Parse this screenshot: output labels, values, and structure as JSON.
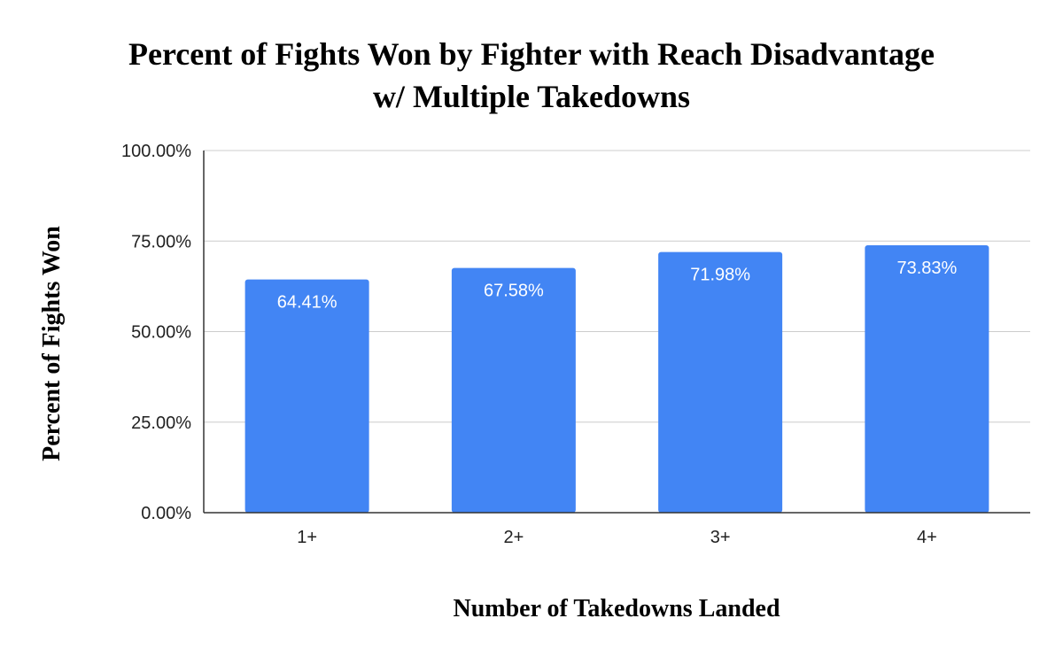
{
  "chart_data": {
    "type": "bar",
    "title_lines": [
      "Percent of Fights Won by Fighter with Reach Disadvantage",
      "w/ Multiple Takedowns"
    ],
    "xlabel": "Number of Takedowns Landed",
    "ylabel": "Percent of Fights Won",
    "categories": [
      "1+",
      "2+",
      "3+",
      "4+"
    ],
    "values": [
      64.41,
      67.58,
      71.98,
      73.83
    ],
    "data_labels": [
      "64.41%",
      "67.58%",
      "71.98%",
      "73.83%"
    ],
    "ylim": [
      0,
      100
    ],
    "yticks": [
      0,
      25,
      50,
      75,
      100
    ],
    "ytick_labels": [
      "0.00%",
      "25.00%",
      "50.00%",
      "75.00%",
      "100.00%"
    ],
    "grid": true,
    "bar_color": "#4285f4",
    "grid_color": "#cccccc",
    "axis_color": "#333333"
  }
}
